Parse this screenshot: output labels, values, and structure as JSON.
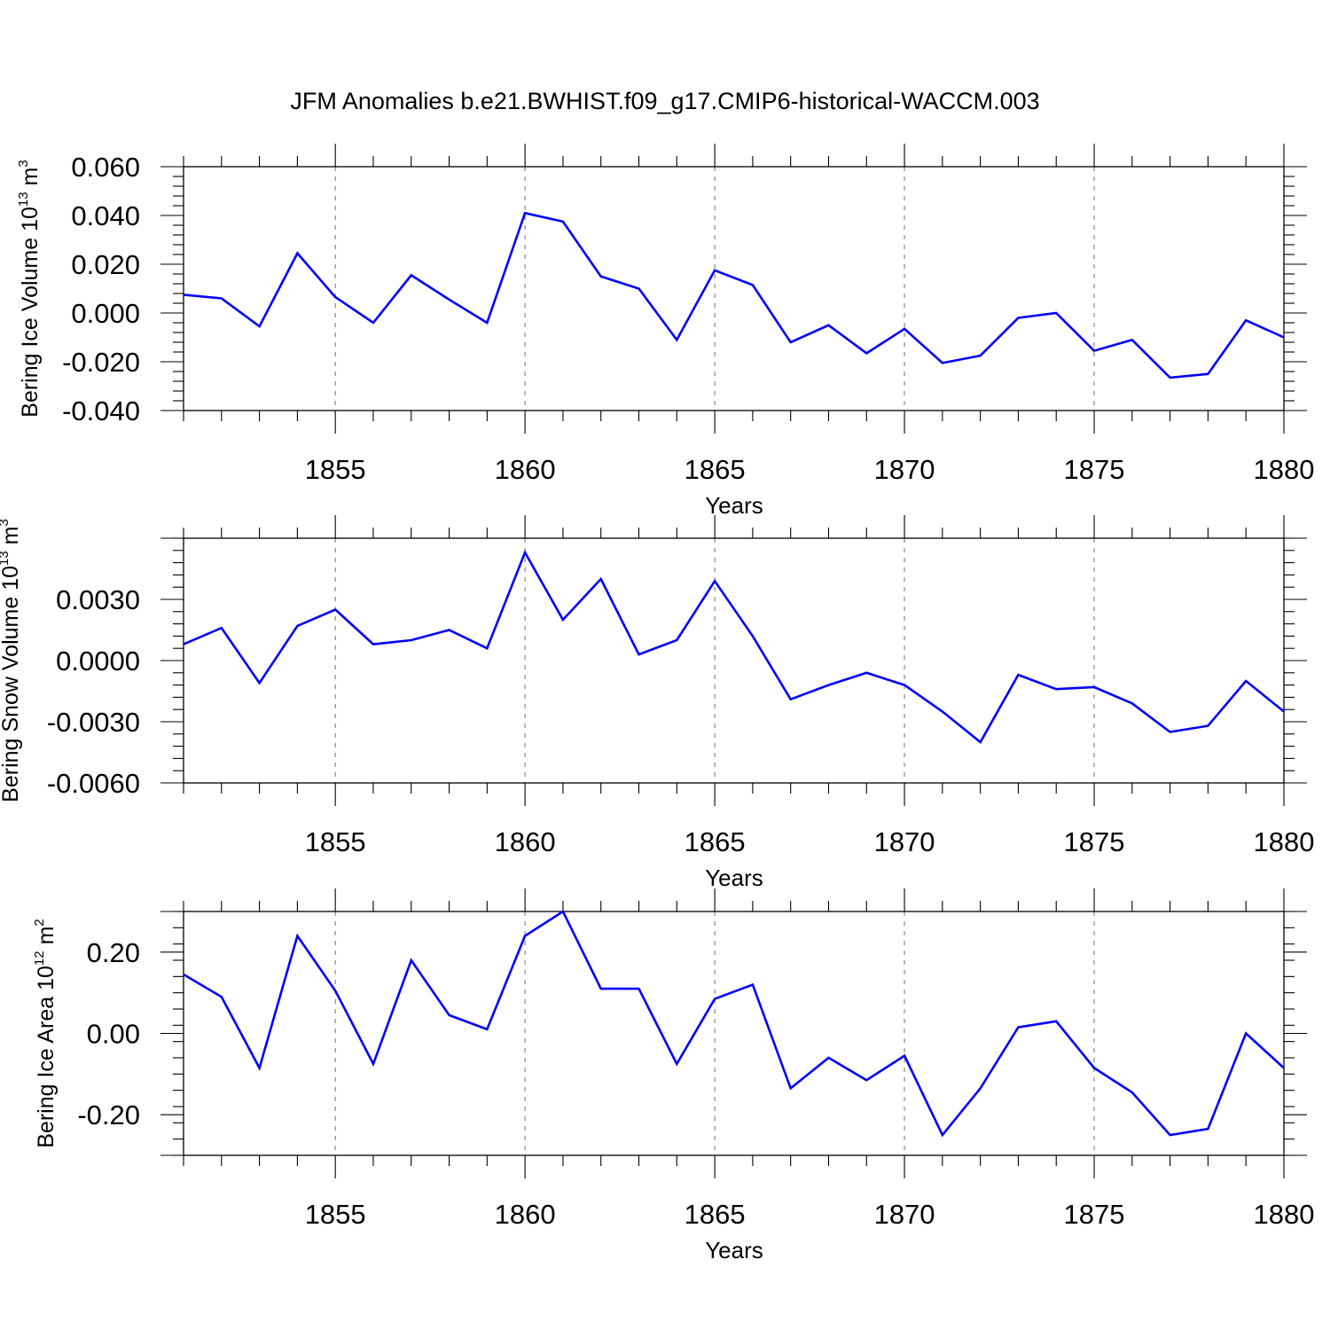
{
  "title": "JFM Anomalies b.e21.BWHIST.f09_g17.CMIP6-historical-WACCM.003",
  "chart_data": [
    {
      "type": "line",
      "ylabel": "Bering Ice Volume 10",
      "ylabel_exp": "13",
      "ylabel_unit": " m",
      "ylabel_unit_exp": "3",
      "xlabel": "Years",
      "xlim": [
        1851,
        1880
      ],
      "ylim": [
        -0.04,
        0.06
      ],
      "grid": "vertical dashed at major x ticks",
      "xticks": [
        1855,
        1860,
        1865,
        1870,
        1875,
        1880
      ],
      "xtick_labels": [
        "1855",
        "1860",
        "1865",
        "1870",
        "1875",
        "1880"
      ],
      "yticks": [
        -0.04,
        -0.02,
        0.0,
        0.02,
        0.04,
        0.06
      ],
      "ytick_labels": [
        "-0.040",
        "-0.020",
        "0.000",
        "0.020",
        "0.040",
        "0.060"
      ],
      "x": [
        1851,
        1852,
        1853,
        1854,
        1855,
        1856,
        1857,
        1858,
        1859,
        1860,
        1861,
        1862,
        1863,
        1864,
        1865,
        1866,
        1867,
        1868,
        1869,
        1870,
        1871,
        1872,
        1873,
        1874,
        1875,
        1876,
        1877,
        1878,
        1879,
        1880
      ],
      "series": [
        {
          "color": "#0000ff",
          "values": [
            0.0075,
            0.006,
            -0.0055,
            0.0245,
            0.0065,
            -0.004,
            0.0155,
            0.0055,
            -0.004,
            0.041,
            0.0375,
            0.015,
            0.01,
            -0.011,
            0.0175,
            0.0115,
            -0.012,
            -0.005,
            -0.0165,
            -0.0065,
            -0.0205,
            -0.0175,
            -0.002,
            0.0,
            -0.0155,
            -0.011,
            -0.0265,
            -0.025,
            -0.003,
            -0.01
          ]
        }
      ]
    },
    {
      "type": "line",
      "ylabel": "Bering Snow Volume 10",
      "ylabel_exp": "13",
      "ylabel_unit": " m",
      "ylabel_unit_exp": "3",
      "xlabel": "Years",
      "xlim": [
        1851,
        1880
      ],
      "ylim": [
        -0.006,
        0.006
      ],
      "grid": "vertical dashed at major x ticks",
      "xticks": [
        1855,
        1860,
        1865,
        1870,
        1875,
        1880
      ],
      "xtick_labels": [
        "1855",
        "1860",
        "1865",
        "1870",
        "1875",
        "1880"
      ],
      "yticks": [
        -0.006,
        -0.003,
        0.0,
        0.003
      ],
      "ytick_labels": [
        "-0.0060",
        "-0.0030",
        "0.0000",
        "0.0030"
      ],
      "x": [
        1851,
        1852,
        1853,
        1854,
        1855,
        1856,
        1857,
        1858,
        1859,
        1860,
        1861,
        1862,
        1863,
        1864,
        1865,
        1866,
        1867,
        1868,
        1869,
        1870,
        1871,
        1872,
        1873,
        1874,
        1875,
        1876,
        1877,
        1878,
        1879,
        1880
      ],
      "series": [
        {
          "color": "#0000ff",
          "values": [
            0.0008,
            0.0016,
            -0.0011,
            0.0017,
            0.0025,
            0.0008,
            0.001,
            0.0015,
            0.0006,
            0.0053,
            0.002,
            0.004,
            0.0003,
            0.001,
            0.0039,
            0.0012,
            -0.0019,
            -0.0012,
            -0.0006,
            -0.0012,
            -0.0025,
            -0.004,
            -0.0007,
            -0.0014,
            -0.0013,
            -0.0021,
            -0.0035,
            -0.0032,
            -0.001,
            -0.0025
          ]
        }
      ]
    },
    {
      "type": "line",
      "ylabel": "Bering Ice Area 10",
      "ylabel_exp": "12",
      "ylabel_unit": " m",
      "ylabel_unit_exp": "2",
      "xlabel": "Years",
      "xlim": [
        1851,
        1880
      ],
      "ylim": [
        -0.3,
        0.3
      ],
      "grid": "vertical dashed at major x ticks",
      "xticks": [
        1855,
        1860,
        1865,
        1870,
        1875,
        1880
      ],
      "xtick_labels": [
        "1855",
        "1860",
        "1865",
        "1870",
        "1875",
        "1880"
      ],
      "yticks": [
        -0.2,
        0.0,
        0.2
      ],
      "ytick_labels": [
        "-0.20",
        "0.00",
        "0.20"
      ],
      "x": [
        1851,
        1852,
        1853,
        1854,
        1855,
        1856,
        1857,
        1858,
        1859,
        1860,
        1861,
        1862,
        1863,
        1864,
        1865,
        1866,
        1867,
        1868,
        1869,
        1870,
        1871,
        1872,
        1873,
        1874,
        1875,
        1876,
        1877,
        1878,
        1879,
        1880
      ],
      "series": [
        {
          "color": "#0000ff",
          "values": [
            0.145,
            0.09,
            -0.085,
            0.24,
            0.105,
            -0.075,
            0.18,
            0.045,
            0.01,
            0.24,
            0.3,
            0.11,
            0.11,
            -0.075,
            0.085,
            0.12,
            -0.135,
            -0.06,
            -0.115,
            -0.055,
            -0.25,
            -0.135,
            0.015,
            0.03,
            -0.085,
            -0.145,
            -0.25,
            -0.235,
            0.0,
            -0.085
          ]
        }
      ]
    }
  ]
}
